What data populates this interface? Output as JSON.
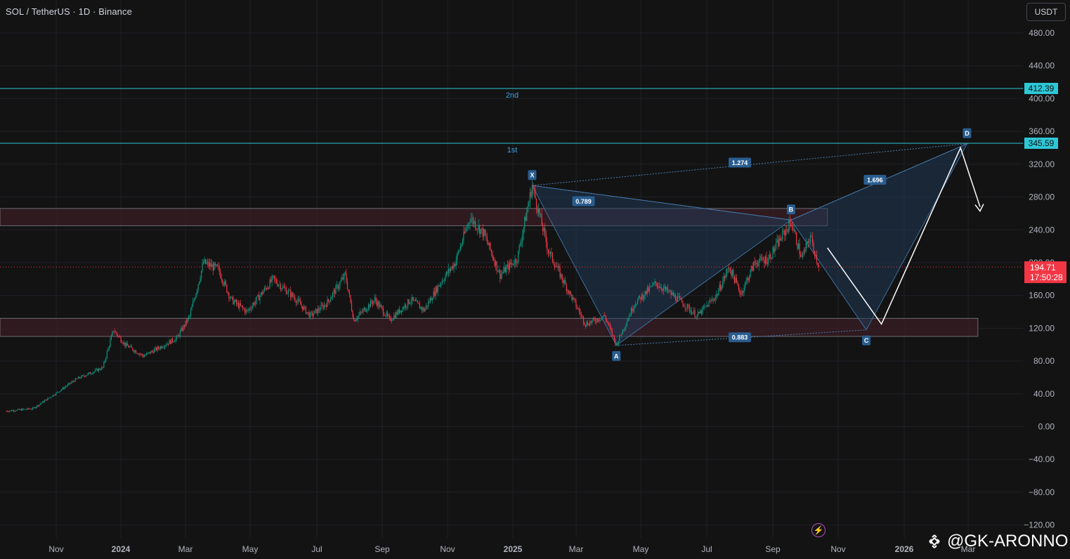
{
  "header": {
    "title": "SOL / TetherUS · 1D · Binance"
  },
  "currency_button": "USDT",
  "watermark": {
    "handle": "@GK-ARONNO",
    "logo_icon": "binance-logo-icon"
  },
  "status_icon": "lightning-icon",
  "colors": {
    "background": "#131313",
    "grid": "#1f2128",
    "candle_up": "#089981",
    "candle_down": "#f23645",
    "level_line": "#2ec7d6",
    "harmonic_fill": "#1f3b5a",
    "harmonic_label_bg": "#2a5d8f",
    "zone_fill": "#3a1e25",
    "current_price_bg": "#f23645"
  },
  "chart_data": {
    "type": "candlestick",
    "symbol": "SOL / TetherUS",
    "interval": "1D",
    "exchange": "Binance",
    "y_axis": {
      "ticks": [
        "480.00",
        "440.00",
        "400.00",
        "360.00",
        "320.00",
        "280.00",
        "240.00",
        "200.00",
        "160.00",
        "120.00",
        "80.00",
        "40.00",
        "0.00",
        "−40.00",
        "−80.00",
        "−120.00"
      ],
      "tick_values": [
        480,
        440,
        400,
        360,
        320,
        280,
        240,
        200,
        160,
        120,
        80,
        40,
        0,
        -40,
        -80,
        -120
      ],
      "range": [
        -130,
        505
      ]
    },
    "x_axis": {
      "labels": [
        "Nov",
        "2024",
        "Mar",
        "May",
        "Jul",
        "Sep",
        "Nov",
        "2025",
        "Mar",
        "May",
        "Jul",
        "Sep",
        "Nov",
        "2026",
        "Mar"
      ],
      "bold": [
        false,
        true,
        false,
        false,
        false,
        false,
        false,
        true,
        false,
        false,
        false,
        false,
        false,
        true,
        false
      ],
      "dates": [
        "2023-11-01",
        "2024-01-01",
        "2024-03-01",
        "2024-05-01",
        "2024-07-01",
        "2024-09-01",
        "2024-11-01",
        "2025-01-01",
        "2025-03-01",
        "2025-05-01",
        "2025-07-01",
        "2025-09-01",
        "2025-11-01",
        "2026-01-01",
        "2026-03-01"
      ]
    },
    "price_path": [
      [
        "2023-09-15",
        19
      ],
      [
        "2023-10-10",
        22
      ],
      [
        "2023-10-31",
        40
      ],
      [
        "2023-11-20",
        58
      ],
      [
        "2023-12-15",
        72
      ],
      [
        "2023-12-25",
        118
      ],
      [
        "2024-01-05",
        100
      ],
      [
        "2024-01-22",
        86
      ],
      [
        "2024-02-05",
        96
      ],
      [
        "2024-02-22",
        108
      ],
      [
        "2024-03-05",
        135
      ],
      [
        "2024-03-18",
        200
      ],
      [
        "2024-04-01",
        192
      ],
      [
        "2024-04-13",
        155
      ],
      [
        "2024-04-28",
        140
      ],
      [
        "2024-05-10",
        160
      ],
      [
        "2024-05-22",
        180
      ],
      [
        "2024-06-10",
        158
      ],
      [
        "2024-06-25",
        135
      ],
      [
        "2024-07-10",
        150
      ],
      [
        "2024-07-28",
        185
      ],
      [
        "2024-08-05",
        130
      ],
      [
        "2024-08-25",
        155
      ],
      [
        "2024-09-08",
        130
      ],
      [
        "2024-09-28",
        155
      ],
      [
        "2024-10-10",
        142
      ],
      [
        "2024-10-25",
        175
      ],
      [
        "2024-11-08",
        200
      ],
      [
        "2024-11-22",
        255
      ],
      [
        "2024-12-05",
        235
      ],
      [
        "2024-12-20",
        185
      ],
      [
        "2025-01-05",
        205
      ],
      [
        "2025-01-19",
        294
      ],
      [
        "2025-02-03",
        215
      ],
      [
        "2025-02-20",
        170
      ],
      [
        "2025-03-10",
        125
      ],
      [
        "2025-03-28",
        135
      ],
      [
        "2025-04-08",
        100
      ],
      [
        "2025-04-25",
        150
      ],
      [
        "2025-05-15",
        175
      ],
      [
        "2025-06-05",
        155
      ],
      [
        "2025-06-22",
        135
      ],
      [
        "2025-07-10",
        160
      ],
      [
        "2025-07-22",
        195
      ],
      [
        "2025-08-02",
        162
      ],
      [
        "2025-08-15",
        200
      ],
      [
        "2025-08-28",
        205
      ],
      [
        "2025-09-18",
        250
      ],
      [
        "2025-09-28",
        205
      ],
      [
        "2025-10-06",
        232
      ],
      [
        "2025-10-14",
        194.71
      ]
    ],
    "current_price": {
      "value": 194.71,
      "label": "194.71",
      "countdown": "17:50:28"
    },
    "horizontal_levels": [
      {
        "label": "2nd",
        "value": 412.39,
        "tag": "412.39"
      },
      {
        "label": "1st",
        "value": 345.59,
        "tag": "345.59"
      }
    ],
    "zones": [
      {
        "from": "2023-09-01",
        "to": "2025-10-22",
        "low": 245,
        "high": 266
      },
      {
        "from": "2023-09-01",
        "to": "2026-03-10",
        "low": 110,
        "high": 132
      }
    ],
    "harmonic_pattern": {
      "points": [
        {
          "label": "X",
          "date": "2025-01-19",
          "value": 294
        },
        {
          "label": "A",
          "date": "2025-04-08",
          "value": 99
        },
        {
          "label": "B",
          "date": "2025-09-18",
          "value": 252
        },
        {
          "label": "C",
          "date": "2025-11-27",
          "value": 118
        },
        {
          "label": "D",
          "date": "2026-02-28",
          "value": 345
        }
      ],
      "ratios": [
        {
          "label": "0.789",
          "date": "2025-03-08",
          "value": 275
        },
        {
          "label": "1.274",
          "date": "2025-08-01",
          "value": 322
        },
        {
          "label": "0.883",
          "date": "2025-08-01",
          "value": 109
        },
        {
          "label": "1.696",
          "date": "2025-12-05",
          "value": 301
        }
      ]
    },
    "projection_path": [
      [
        "2025-10-22",
        218
      ],
      [
        "2025-12-11",
        125
      ],
      [
        "2026-02-22",
        340
      ],
      [
        "2026-03-12",
        268
      ]
    ]
  }
}
